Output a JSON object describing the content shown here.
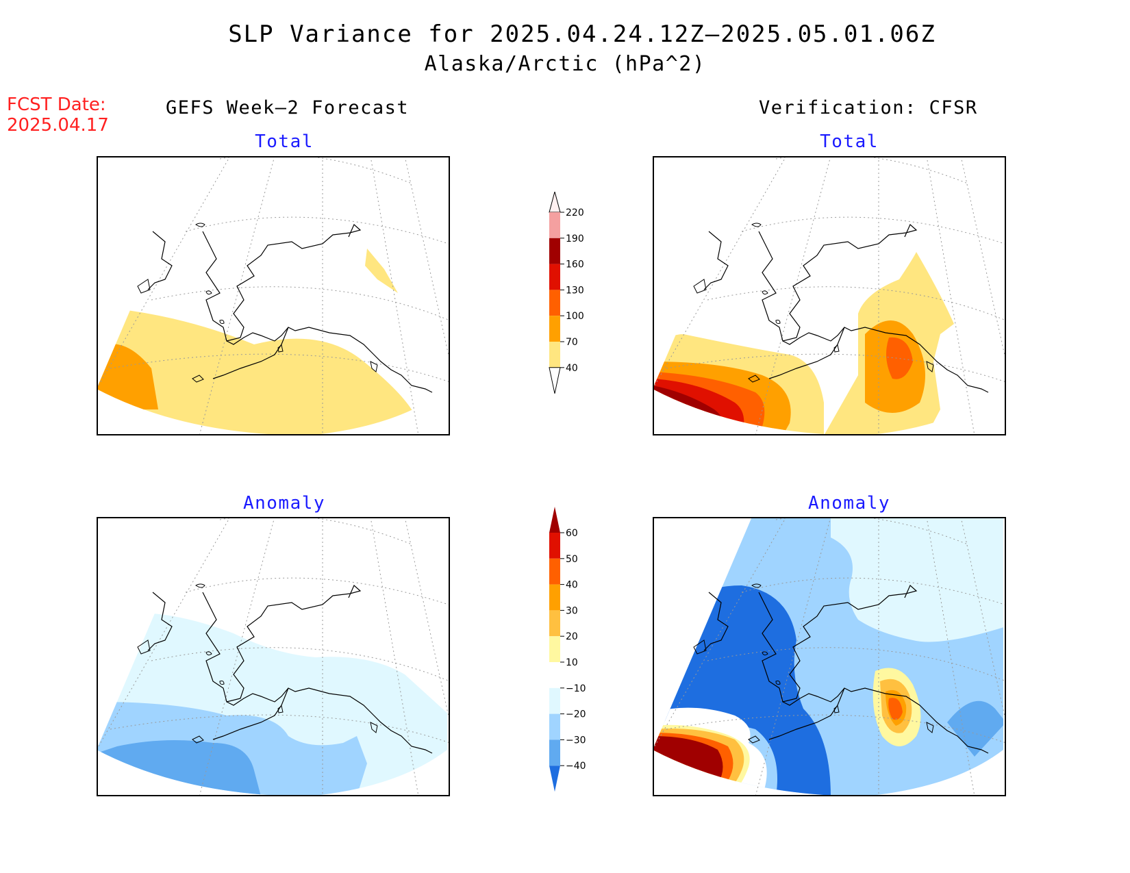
{
  "title": "SLP Variance for 2025.04.24.12Z–2025.05.01.06Z",
  "subtitle": "Alaska/Arctic (hPa^2)",
  "fcst_label": "FCST Date:",
  "fcst_date": "2025.04.17",
  "left_header": "GEFS Week–2 Forecast",
  "right_header": "Verification: CFSR",
  "panels": {
    "top_left": "Total",
    "top_right": "Total",
    "bottom_left": "Anomaly",
    "bottom_right": "Anomaly"
  },
  "total_scale": {
    "labels": [
      "220",
      "190",
      "160",
      "130",
      "100",
      "70",
      "40"
    ],
    "colors": [
      "#fff0f0",
      "#f4a0a0",
      "#a00000",
      "#e01000",
      "#ff6000",
      "#ffa000",
      "#ffe680"
    ]
  },
  "anomaly_scale": {
    "labels": [
      "60",
      "50",
      "40",
      "30",
      "20",
      "10",
      "−10",
      "−20",
      "−30",
      "−40"
    ],
    "colors": [
      "#a00000",
      "#e01000",
      "#ff6000",
      "#ffa000",
      "#ffc040",
      "#fff8a0",
      "#ffffff",
      "#e0f8ff",
      "#a0d4ff",
      "#60aaf0",
      "#1e6ee0"
    ]
  }
}
